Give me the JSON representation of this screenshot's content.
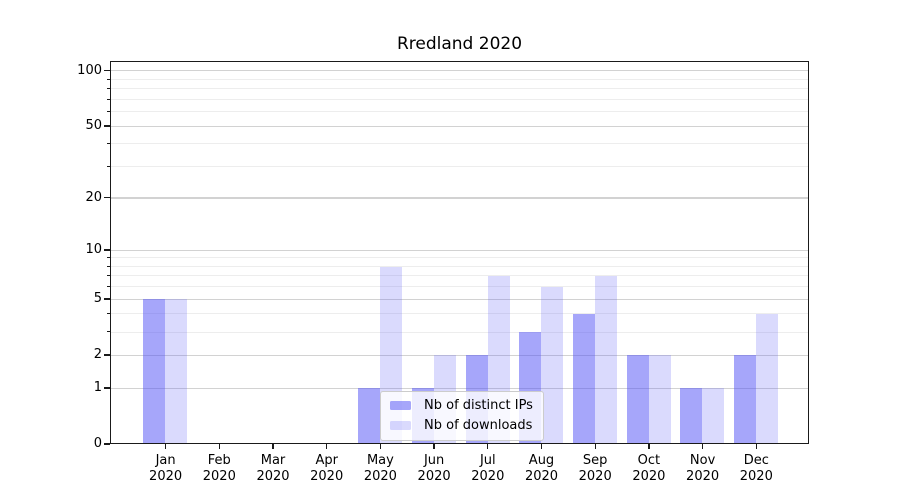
{
  "chart_data": {
    "type": "bar",
    "title": "Rredland 2020",
    "x_tick_labels": [
      "Jan\n2020",
      "Feb\n2020",
      "Mar\n2020",
      "Apr\n2020",
      "May\n2020",
      "Jun\n2020",
      "Jul\n2020",
      "Aug\n2020",
      "Sep\n2020",
      "Oct\n2020",
      "Nov\n2020",
      "Dec\n2020"
    ],
    "series": [
      {
        "name": "Nb of distinct IPs",
        "color": "rgba(85,85,245,0.52)",
        "values": [
          5,
          0,
          0,
          0,
          1,
          1,
          2,
          3,
          4,
          2,
          1,
          2
        ]
      },
      {
        "name": "Nb of downloads",
        "color": "rgba(85,85,245,0.22)",
        "values": [
          5,
          0,
          0,
          0,
          8,
          2,
          7,
          6,
          7,
          2,
          1,
          4
        ]
      }
    ],
    "y_axis": {
      "scale": "log10(1+value)",
      "tick_values": [
        0,
        1,
        2,
        5,
        10,
        20,
        50,
        100
      ],
      "major_gridline_values": [
        1,
        2,
        5,
        10,
        20,
        50,
        100
      ],
      "minor_gridline_values": [
        3,
        4,
        6,
        7,
        8,
        9,
        30,
        40,
        60,
        70,
        80,
        90
      ],
      "ylim": [
        0,
        113
      ]
    },
    "legend_position": "lower center",
    "grid": "horizontal-only",
    "xlabel": "",
    "ylabel": ""
  }
}
